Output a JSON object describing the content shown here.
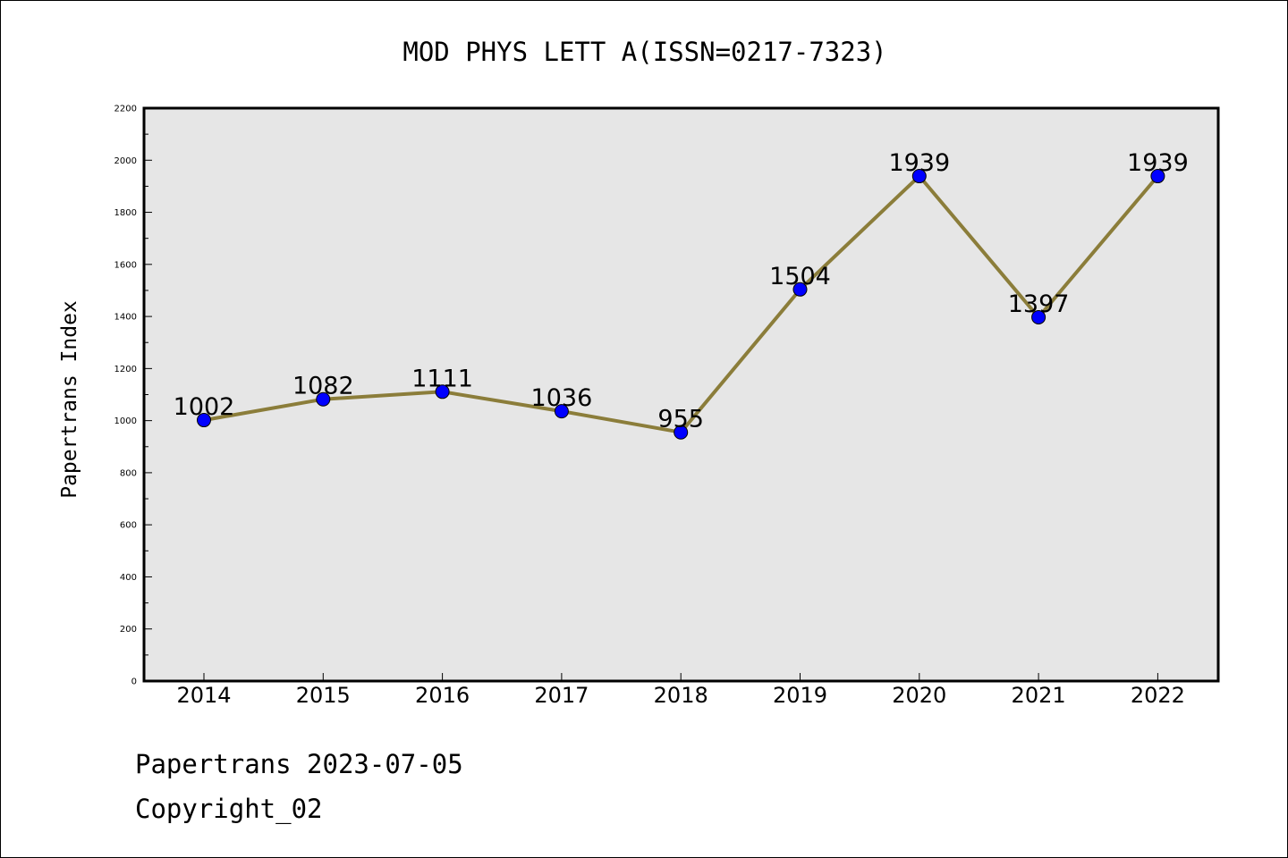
{
  "chart_data": {
    "type": "line",
    "title": "MOD PHYS LETT A(ISSN=0217-7323)",
    "xlabel": "",
    "ylabel": "Papertrans Index",
    "categories": [
      "2014",
      "2015",
      "2016",
      "2017",
      "2018",
      "2019",
      "2020",
      "2021",
      "2022"
    ],
    "series": [
      {
        "values": [
          1002,
          1082,
          1111,
          1036,
          955,
          1504,
          1939,
          1397,
          1939
        ],
        "data_labels": [
          "1002",
          "1082",
          "1111",
          "1036",
          "955",
          "1504",
          "1939",
          "1397",
          "1939"
        ]
      }
    ],
    "ylim": [
      0,
      2200
    ],
    "yticks": [
      "0",
      "200",
      "400",
      "600",
      "800",
      "1000",
      "1200",
      "1400",
      "1600",
      "1800",
      "2000",
      "2200"
    ],
    "grid": false,
    "legend": "none",
    "colors": {
      "line": "#8b7d3a",
      "marker": "#0000ff",
      "plot_background": "#e6e6e6"
    }
  },
  "footer": {
    "source": "Papertrans 2023-07-05",
    "copyright": "Copyright_02"
  }
}
